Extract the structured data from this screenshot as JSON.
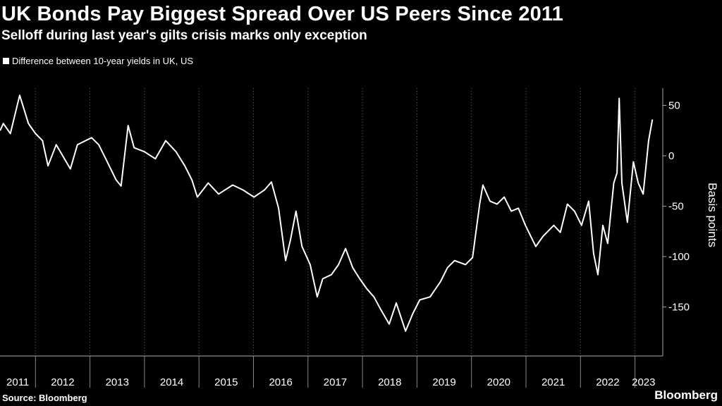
{
  "chart_data": {
    "type": "line",
    "title": "UK Bonds Pay Biggest Spread Over US Peers Since 2011",
    "subtitle": "Selloff during last year's gilts crisis marks only exception",
    "legend": [
      "Difference between 10-year yields in UK, US"
    ],
    "legend_placement": "top-left",
    "xlabel": "",
    "ylabel": "Basis points",
    "xlim": [
      2011.35,
      2023.4
    ],
    "ylim": [
      -190,
      80
    ],
    "yticks": [
      50,
      0,
      -50,
      -100,
      -150
    ],
    "xticks": [
      "2011",
      "2012",
      "2013",
      "2014",
      "2015",
      "2016",
      "2017",
      "2018",
      "2019",
      "2020",
      "2021",
      "2022",
      "2023"
    ],
    "grid": "vertical dotted at year boundaries",
    "series": [
      {
        "name": "Difference between 10-year yields in UK, US",
        "color": "#ffffff",
        "x": [
          2011.35,
          2011.41,
          2011.54,
          2011.71,
          2011.87,
          2012.0,
          2012.13,
          2012.23,
          2012.38,
          2012.64,
          2012.77,
          2013.03,
          2013.16,
          2013.29,
          2013.48,
          2013.57,
          2013.7,
          2013.81,
          2014.0,
          2014.2,
          2014.39,
          2014.58,
          2014.74,
          2014.87,
          2014.97,
          2015.17,
          2015.36,
          2015.62,
          2015.81,
          2016.01,
          2016.2,
          2016.33,
          2016.46,
          2016.59,
          2016.68,
          2016.78,
          2016.89,
          2017.04,
          2017.17,
          2017.27,
          2017.43,
          2017.56,
          2017.69,
          2017.82,
          2017.95,
          2018.08,
          2018.21,
          2018.34,
          2018.49,
          2018.62,
          2018.79,
          2018.92,
          2019.05,
          2019.24,
          2019.43,
          2019.56,
          2019.69,
          2019.89,
          2020.02,
          2020.15,
          2020.21,
          2020.34,
          2020.47,
          2020.6,
          2020.73,
          2020.86,
          2020.99,
          2021.18,
          2021.31,
          2021.51,
          2021.63,
          2021.76,
          2021.89,
          2022.02,
          2022.15,
          2022.24,
          2022.32,
          2022.41,
          2022.5,
          2022.61,
          2022.67,
          2022.71,
          2022.76,
          2022.86,
          2022.97,
          2023.06,
          2023.15,
          2023.25,
          2023.32
        ],
        "y": [
          25,
          32,
          22,
          60,
          32,
          22,
          15,
          -10,
          11,
          -13,
          11,
          18,
          11,
          -3,
          -24,
          -30,
          30,
          8,
          4,
          -3,
          15,
          4,
          -10,
          -24,
          -41,
          -27,
          -38,
          -29,
          -34,
          -41,
          -34,
          -26,
          -52,
          -104,
          -83,
          -55,
          -90,
          -108,
          -140,
          -122,
          -118,
          -108,
          -92,
          -111,
          -122,
          -132,
          -140,
          -153,
          -167,
          -146,
          -174,
          -157,
          -143,
          -140,
          -125,
          -111,
          -104,
          -108,
          -101,
          -48,
          -29,
          -45,
          -48,
          -41,
          -55,
          -52,
          -69,
          -90,
          -80,
          -69,
          -76,
          -48,
          -55,
          -69,
          -45,
          -97,
          -118,
          -69,
          -87,
          -27,
          -17,
          57,
          -27,
          -66,
          -6,
          -27,
          -38,
          15,
          36
        ]
      }
    ],
    "source": "Source: Bloomberg",
    "logo": "Bloomberg"
  }
}
